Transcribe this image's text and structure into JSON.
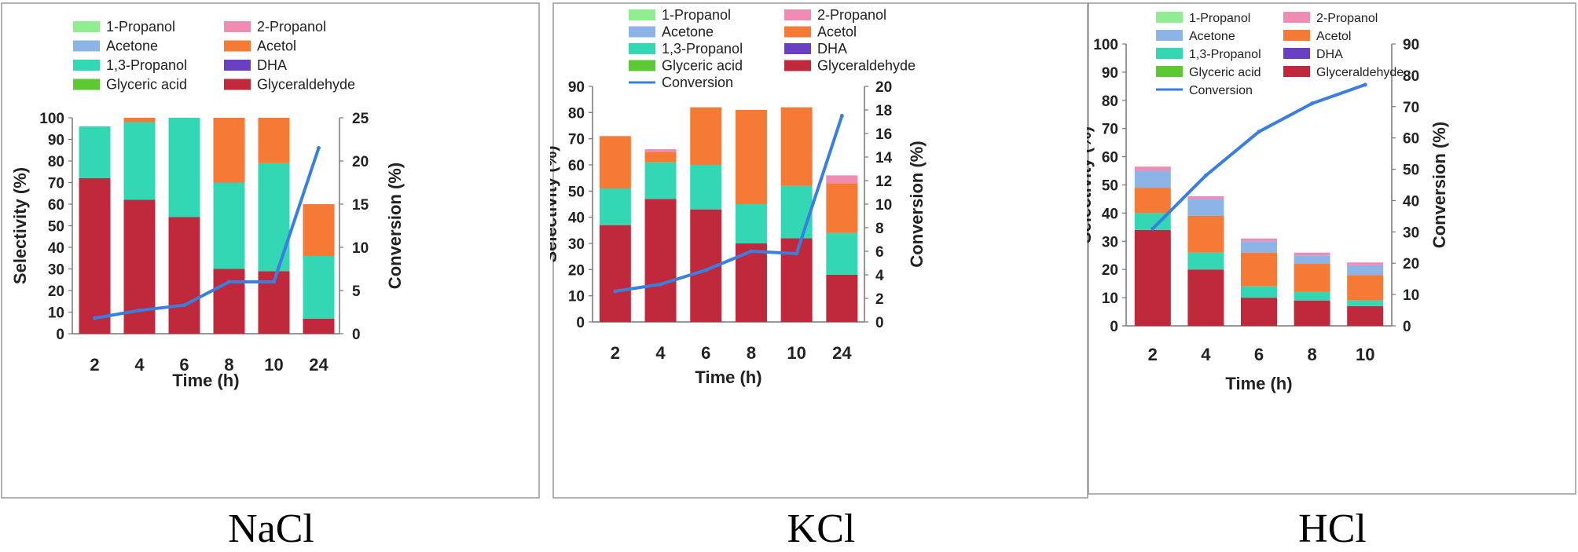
{
  "colors": {
    "1-Propanol": "#90ee90",
    "2-Propanol": "#f08cb4",
    "Acetone": "#8cb4e6",
    "Acetol": "#f47a36",
    "1,3-Propanol": "#33d7b4",
    "DHA": "#6a3fc4",
    "Glyceric acid": "#5cc933",
    "Glyceraldehyde": "#c0283c",
    "Conversion": "#3a7fe0",
    "frame": "#999999"
  },
  "chart_data": [
    {
      "type": "bar",
      "caption": "NaCl",
      "xlabel": "Time (h)",
      "ylabel": "Selectivity (%)",
      "y2label": "Conversion (%)",
      "ylim": [
        0,
        100
      ],
      "yticks": [
        0,
        10,
        20,
        30,
        40,
        50,
        60,
        70,
        80,
        90,
        100
      ],
      "y2lim": [
        0,
        25
      ],
      "y2ticks": [
        0,
        5,
        10,
        15,
        20,
        25
      ],
      "categories": [
        "2",
        "4",
        "6",
        "8",
        "10",
        "24"
      ],
      "legend": [
        "1-Propanol",
        "2-Propanol",
        "Acetone",
        "Acetol",
        "1,3-Propanol",
        "DHA",
        "Glyceric acid",
        "Glyceraldehyde"
      ],
      "legend_has_conversion": false,
      "series": [
        {
          "name": "Glyceraldehyde",
          "values": [
            72,
            62,
            54,
            30,
            29,
            7
          ]
        },
        {
          "name": "1,3-Propanol",
          "values": [
            24,
            36,
            46,
            40,
            50,
            29
          ]
        },
        {
          "name": "Acetol",
          "values": [
            0,
            2,
            0,
            30,
            21,
            24
          ]
        }
      ],
      "conversion": [
        1.8,
        2.7,
        3.3,
        6,
        6,
        21.5
      ]
    },
    {
      "type": "bar",
      "caption": "KCl",
      "xlabel": "Time (h)",
      "ylabel": "Selectivity (%)",
      "y2label": "Conversion (%)",
      "ylim": [
        0,
        90
      ],
      "yticks": [
        0,
        10,
        20,
        30,
        40,
        50,
        60,
        70,
        80,
        90
      ],
      "y2lim": [
        0,
        20
      ],
      "y2ticks": [
        0,
        2,
        4,
        6,
        8,
        10,
        12,
        14,
        16,
        18,
        20
      ],
      "categories": [
        "2",
        "4",
        "6",
        "8",
        "10",
        "24"
      ],
      "legend": [
        "1-Propanol",
        "2-Propanol",
        "Acetone",
        "Acetol",
        "1,3-Propanol",
        "DHA",
        "Glyceric acid",
        "Glyceraldehyde",
        "Conversion"
      ],
      "legend_has_conversion": true,
      "series": [
        {
          "name": "Glyceraldehyde",
          "values": [
            37,
            47,
            43,
            30,
            32,
            18
          ]
        },
        {
          "name": "1,3-Propanol",
          "values": [
            14,
            14,
            17,
            15,
            20,
            16
          ]
        },
        {
          "name": "Acetol",
          "values": [
            20,
            4,
            22,
            36,
            30,
            19
          ]
        },
        {
          "name": "2-Propanol",
          "values": [
            0,
            1,
            0,
            0,
            0,
            3
          ]
        }
      ],
      "conversion": [
        2.6,
        3.2,
        4.4,
        6,
        5.8,
        17.5
      ]
    },
    {
      "type": "bar",
      "caption": "HCl",
      "xlabel": "Time (h)",
      "ylabel": "Selectivity (%)",
      "y2label": "Conversion (%)",
      "ylim": [
        0,
        100
      ],
      "yticks": [
        0,
        10,
        20,
        30,
        40,
        50,
        60,
        70,
        80,
        90,
        100
      ],
      "y2lim": [
        0,
        90
      ],
      "y2ticks": [
        0,
        10,
        20,
        30,
        40,
        50,
        60,
        70,
        80,
        90
      ],
      "categories": [
        "2",
        "4",
        "6",
        "8",
        "10"
      ],
      "legend": [
        "1-Propanol",
        "2-Propanol",
        "Acetone",
        "Acetol",
        "1,3-Propanol",
        "DHA",
        "Glyceric acid",
        "Glyceraldehyde",
        "Conversion"
      ],
      "legend_has_conversion": true,
      "series": [
        {
          "name": "Glyceraldehyde",
          "values": [
            34,
            20,
            10,
            9,
            7
          ]
        },
        {
          "name": "1,3-Propanol",
          "values": [
            6,
            6,
            4,
            3,
            2
          ]
        },
        {
          "name": "Acetol",
          "values": [
            9,
            13,
            12,
            10,
            9
          ]
        },
        {
          "name": "Acetone",
          "values": [
            6,
            6,
            4,
            3,
            3.5
          ]
        },
        {
          "name": "2-Propanol",
          "values": [
            1.5,
            1,
            1,
            1,
            1
          ]
        }
      ],
      "conversion": [
        31,
        48,
        62,
        71,
        77
      ]
    }
  ]
}
